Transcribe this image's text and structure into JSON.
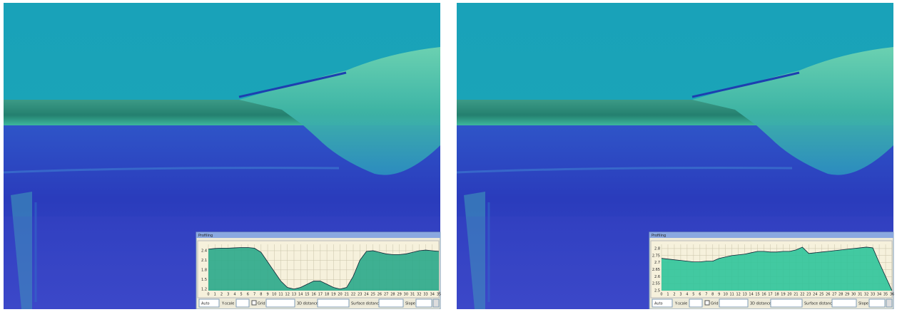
{
  "panels": [
    {
      "window_title": "Profiling",
      "toolbar": {
        "scale": "Auto",
        "y_scale": "Y-scale",
        "grid": "Grid",
        "distance_3d": "3D distance",
        "surface_distance": "Surface distance",
        "slope": "Slope"
      },
      "chart_data": {
        "type": "area",
        "color": "#2aa88a",
        "x": [
          0,
          1,
          2,
          3,
          4,
          5,
          6,
          7,
          8,
          9,
          10,
          11,
          12,
          13,
          14,
          15,
          16,
          17,
          18,
          19,
          20,
          21,
          22,
          23,
          24,
          25,
          26,
          27,
          28,
          29,
          30,
          31,
          32,
          33,
          34,
          35
        ],
        "values": [
          2.45,
          2.47,
          2.48,
          2.48,
          2.49,
          2.5,
          2.5,
          2.48,
          2.35,
          2.05,
          1.75,
          1.45,
          1.25,
          1.2,
          1.25,
          1.35,
          1.45,
          1.45,
          1.35,
          1.25,
          1.2,
          1.25,
          1.6,
          2.1,
          2.38,
          2.4,
          2.35,
          2.3,
          2.28,
          2.28,
          2.3,
          2.35,
          2.4,
          2.42,
          2.4,
          2.38
        ],
        "xlim": [
          0,
          35
        ],
        "ylim": [
          1.15,
          2.6
        ],
        "yticks": [
          1.2,
          1.5,
          1.8,
          2.1,
          2.4
        ],
        "grid": true
      }
    },
    {
      "window_title": "Profiling",
      "toolbar": {
        "scale": "Auto",
        "y_scale": "Y-scale",
        "grid": "Grid",
        "distance_3d": "3D distance",
        "surface_distance": "Surface distance",
        "slope": "Slope"
      },
      "chart_data": {
        "type": "area",
        "color": "#2fc49a",
        "x": [
          0,
          1,
          2,
          3,
          4,
          5,
          6,
          7,
          8,
          9,
          10,
          11,
          12,
          13,
          14,
          15,
          16,
          17,
          18,
          19,
          20,
          21,
          22,
          23,
          24,
          25,
          26,
          27,
          28,
          29,
          30,
          31,
          32,
          33,
          34,
          35,
          36
        ],
        "values": [
          2.73,
          2.725,
          2.72,
          2.715,
          2.71,
          2.705,
          2.705,
          2.71,
          2.71,
          2.73,
          2.74,
          2.75,
          2.755,
          2.76,
          2.77,
          2.78,
          2.78,
          2.775,
          2.775,
          2.78,
          2.78,
          2.79,
          2.81,
          2.765,
          2.77,
          2.775,
          2.78,
          2.785,
          2.79,
          2.795,
          2.8,
          2.805,
          2.81,
          2.805,
          2.7,
          2.6,
          2.5
        ],
        "xlim": [
          0,
          36
        ],
        "ylim": [
          2.5,
          2.83
        ],
        "yticks": [
          2.5,
          2.55,
          2.6,
          2.65,
          2.7,
          2.75,
          2.8
        ],
        "grid": true
      }
    }
  ]
}
